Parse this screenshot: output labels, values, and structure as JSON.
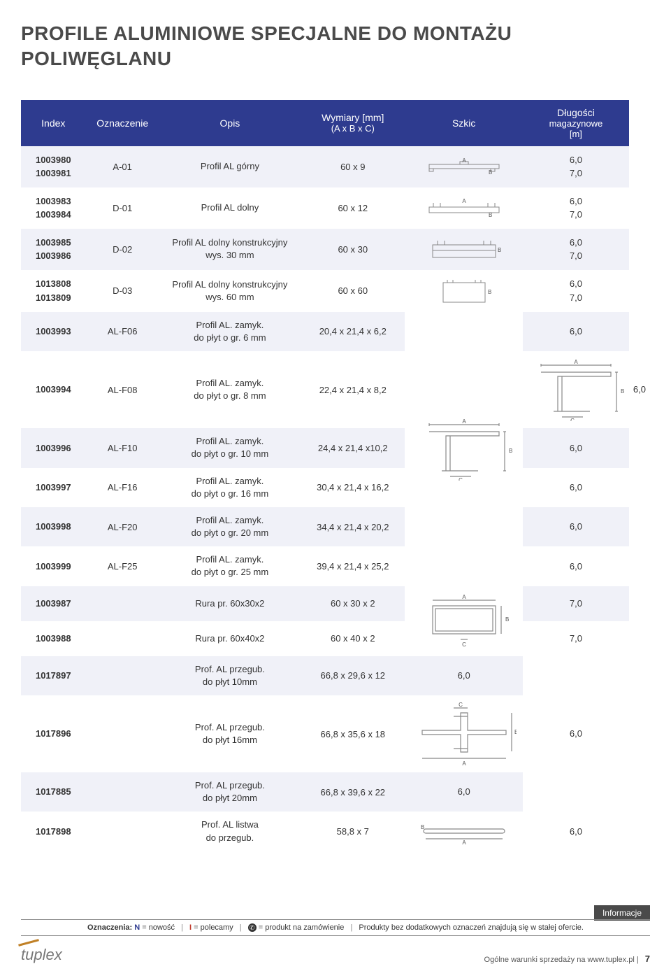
{
  "title": "PROFILE ALUMINIOWE SPECJALNE DO MONTAŻU POLIWĘGLANU",
  "headers": {
    "index": "Index",
    "ozn": "Oznaczenie",
    "opis": "Opis",
    "wym": "Wymiary [mm]",
    "wym_sub": "(A x B x C)",
    "szkic": "Szkic",
    "dlug": "Długości",
    "dlug_sub1": "magazynowe",
    "dlug_sub2": "[m]"
  },
  "rows": [
    {
      "idx": [
        "1003980",
        "1003981"
      ],
      "ozn": "A-01",
      "opis": "Profil AL górny",
      "wym": "60 x 9",
      "len": [
        "6,0",
        "7,0"
      ],
      "svg": "top"
    },
    {
      "idx": [
        "1003983",
        "1003984"
      ],
      "ozn": "D-01",
      "opis": "Profil AL dolny",
      "wym": "60 x 12",
      "len": [
        "6,0",
        "7,0"
      ],
      "svg": "bot1"
    },
    {
      "idx": [
        "1003985",
        "1003986"
      ],
      "ozn": "D-02",
      "opis": "Profil AL dolny konstrukcyjny\nwys. 30 mm",
      "wym": "60 x 30",
      "len": [
        "6,0",
        "7,0"
      ],
      "svg": "bot2"
    },
    {
      "idx": [
        "1013808",
        "1013809"
      ],
      "ozn": "D-03",
      "opis": "Profil AL dolny konstrukcyjny\nwys. 60 mm",
      "wym": "60 x 60",
      "len": [
        "6,0",
        "7,0"
      ],
      "svg": "bot3"
    },
    {
      "idx": [
        "1003993"
      ],
      "ozn": "AL-F06",
      "opis": "Profil AL. zamyk.\ndo płyt o gr. 6 mm",
      "wym": "20,4 x 21,4 x 6,2",
      "len": [
        "6,0"
      ],
      "svg": ""
    },
    {
      "idx": [
        "1003994"
      ],
      "ozn": "AL-F08",
      "opis": "Profil AL. zamyk.\ndo płyt o gr. 8 mm",
      "wym": "22,4 x 21,4 x 8,2",
      "len": [
        "6,0"
      ],
      "svg": "zamyk"
    },
    {
      "idx": [
        "1003996"
      ],
      "ozn": "AL-F10",
      "opis": "Profil AL. zamyk.\ndo płyt o gr. 10 mm",
      "wym": "24,4 x 21,4 x10,2",
      "len": [
        "6,0"
      ],
      "svg": ""
    },
    {
      "idx": [
        "1003997"
      ],
      "ozn": "AL-F16",
      "opis": "Profil AL. zamyk.\ndo płyt o gr. 16 mm",
      "wym": "30,4 x 21,4 x 16,2",
      "len": [
        "6,0"
      ],
      "svg": ""
    },
    {
      "idx": [
        "1003998"
      ],
      "ozn": "AL-F20",
      "opis": "Profil AL. zamyk.\ndo płyt o gr. 20 mm",
      "wym": "34,4 x 21,4 x 20,2",
      "len": [
        "6,0"
      ],
      "svg": ""
    },
    {
      "idx": [
        "1003999"
      ],
      "ozn": "AL-F25",
      "opis": "Profil AL. zamyk.\ndo płyt o gr. 25 mm",
      "wym": "39,4 x 21,4 x 25,2",
      "len": [
        "6,0"
      ],
      "svg": ""
    },
    {
      "idx": [
        "1003987"
      ],
      "ozn": "",
      "opis": "Rura pr. 60x30x2",
      "wym": "60 x 30 x 2",
      "len": [
        "7,0"
      ],
      "svg": "rura"
    },
    {
      "idx": [
        "1003988"
      ],
      "ozn": "",
      "opis": "Rura pr. 60x40x2",
      "wym": "60 x 40 x 2",
      "len": [
        "7,0"
      ],
      "svg": ""
    },
    {
      "idx": [
        "1017897"
      ],
      "ozn": "",
      "opis": "Prof. AL  przegub.\ndo płyt 10mm",
      "wym": "66,8 x 29,6 x 12",
      "len": [
        "6,0"
      ],
      "svg": ""
    },
    {
      "idx": [
        "1017896"
      ],
      "ozn": "",
      "opis": "Prof. AL  przegub.\ndo płyt 16mm",
      "wym": "66,8 x 35,6 x 18",
      "len": [
        "6,0"
      ],
      "svg": "przegub"
    },
    {
      "idx": [
        "1017885"
      ],
      "ozn": "",
      "opis": "Prof. AL  przegub.\ndo płyt 20mm",
      "wym": "66,8 x 39,6 x 22",
      "len": [
        "6,0"
      ],
      "svg": ""
    },
    {
      "idx": [
        "1017898"
      ],
      "ozn": "",
      "opis": "Prof. AL  listwa\ndo przegub.",
      "wym": "58,8 x 7",
      "len": [
        "6,0"
      ],
      "svg": "listwa"
    }
  ],
  "sketches": {
    "stroke": "#888888",
    "label_font": "8",
    "letter_color": "#555555"
  },
  "info_bar": "Informacje",
  "legend": {
    "prefix": "Oznaczenia:",
    "n": "N",
    "n_label": "= nowość",
    "i": "I",
    "i_label": "= polecamy",
    "phone_label": "= produkt na zamówienie",
    "tail": "Produkty bez dodatkowych oznaczeń znajdują się w stałej ofercie."
  },
  "footer": {
    "logo": "tuplex",
    "right": "Ogólne warunki sprzedaży na www.tuplex.pl",
    "page": "7"
  }
}
